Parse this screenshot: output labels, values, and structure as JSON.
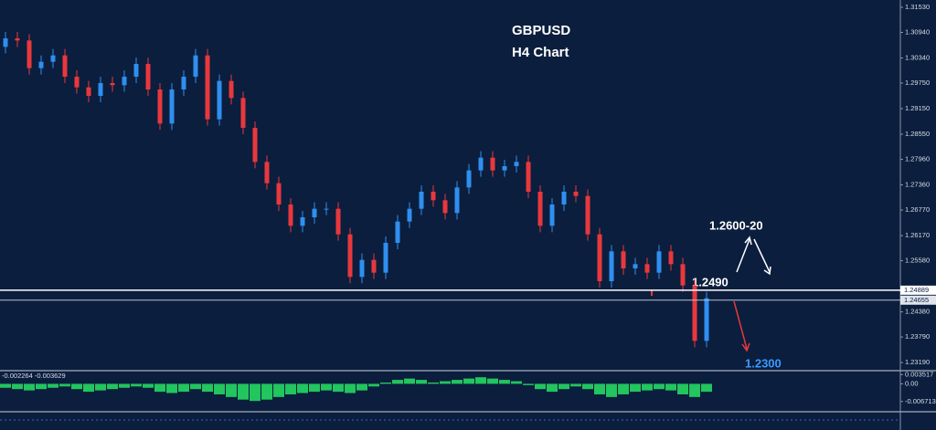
{
  "chart_data": [
    {
      "type": "candlestick",
      "title": "GBPUSD",
      "subtitle": "H4 Chart",
      "up_color": "#2f8ff0",
      "down_color": "#e8383d",
      "open": [
        1.306,
        1.308,
        1.3075,
        1.301,
        1.3025,
        1.304,
        1.299,
        1.2965,
        1.2945,
        1.2975,
        1.297,
        1.299,
        1.302,
        1.296,
        1.288,
        1.296,
        1.299,
        1.304,
        1.289,
        1.298,
        1.294,
        1.287,
        1.279,
        1.274,
        1.269,
        1.264,
        1.266,
        1.268,
        1.268,
        1.262,
        1.252,
        1.256,
        1.253,
        1.26,
        1.265,
        1.268,
        1.272,
        1.27,
        1.267,
        1.273,
        1.277,
        1.28,
        1.277,
        1.278,
        1.279,
        1.272,
        1.264,
        1.269,
        1.272,
        1.271,
        1.262,
        1.251,
        1.258,
        1.254,
        1.255,
        1.253,
        1.258,
        1.255,
        1.25,
        1.237
      ],
      "high": [
        1.3095,
        1.3095,
        1.309,
        1.304,
        1.3055,
        1.3055,
        1.3005,
        1.298,
        1.299,
        1.299,
        1.3005,
        1.3035,
        1.3035,
        1.2975,
        1.2975,
        1.3005,
        1.3055,
        1.3055,
        1.2995,
        1.2995,
        1.2955,
        1.2885,
        1.2805,
        1.2755,
        1.2705,
        1.2675,
        1.2695,
        1.2695,
        1.2695,
        1.2635,
        1.2575,
        1.2575,
        1.2615,
        1.2665,
        1.2695,
        1.2735,
        1.2735,
        1.2715,
        1.2745,
        1.2785,
        1.2815,
        1.2815,
        1.2795,
        1.2805,
        1.2805,
        1.2735,
        1.2705,
        1.2735,
        1.2735,
        1.2725,
        1.2635,
        1.2595,
        1.2595,
        1.2565,
        1.2565,
        1.2595,
        1.2595,
        1.2565,
        1.2515,
        1.2485
      ],
      "low": [
        1.3045,
        1.306,
        1.2995,
        1.2995,
        1.301,
        1.2975,
        1.295,
        1.293,
        1.293,
        1.2955,
        1.2955,
        1.2975,
        1.2945,
        1.2865,
        1.2865,
        1.2945,
        1.2975,
        1.2875,
        1.2875,
        1.2925,
        1.2855,
        1.2775,
        1.2725,
        1.2675,
        1.2625,
        1.2625,
        1.2645,
        1.2665,
        1.2605,
        1.2505,
        1.2505,
        1.2515,
        1.2515,
        1.2585,
        1.2635,
        1.2665,
        1.2685,
        1.2655,
        1.2655,
        1.2715,
        1.2755,
        1.2755,
        1.2755,
        1.2765,
        1.2705,
        1.2625,
        1.2625,
        1.2675,
        1.2695,
        1.2605,
        1.2495,
        1.2495,
        1.2525,
        1.2525,
        1.2515,
        1.2515,
        1.2535,
        1.2485,
        1.2355,
        1.2355
      ],
      "close": [
        1.308,
        1.3075,
        1.301,
        1.3025,
        1.304,
        1.299,
        1.2965,
        1.2945,
        1.2975,
        1.297,
        1.299,
        1.302,
        1.296,
        1.288,
        1.296,
        1.299,
        1.304,
        1.289,
        1.298,
        1.294,
        1.287,
        1.279,
        1.274,
        1.269,
        1.264,
        1.266,
        1.268,
        1.268,
        1.262,
        1.252,
        1.256,
        1.253,
        1.26,
        1.265,
        1.268,
        1.272,
        1.27,
        1.267,
        1.273,
        1.277,
        1.28,
        1.277,
        1.278,
        1.279,
        1.272,
        1.264,
        1.269,
        1.272,
        1.271,
        1.262,
        1.251,
        1.258,
        1.254,
        1.255,
        1.253,
        1.258,
        1.255,
        1.25,
        1.237,
        1.247
      ],
      "ylim": [
        1.23,
        1.317
      ],
      "yticks": [
        {
          "value": 1.3153,
          "label": "1.31530"
        },
        {
          "value": 1.3094,
          "label": "1.30940"
        },
        {
          "value": 1.3034,
          "label": "1.30340"
        },
        {
          "value": 1.2975,
          "label": "1.29750"
        },
        {
          "value": 1.2915,
          "label": "1.29150"
        },
        {
          "value": 1.2855,
          "label": "1.28550"
        },
        {
          "value": 1.2796,
          "label": "1.27960"
        },
        {
          "value": 1.2736,
          "label": "1.27360"
        },
        {
          "value": 1.2677,
          "label": "1.26770"
        },
        {
          "value": 1.2617,
          "label": "1.26170"
        },
        {
          "value": 1.2558,
          "label": "1.25580"
        },
        {
          "value": 1.2438,
          "label": "1.24380"
        },
        {
          "value": 1.2379,
          "label": "1.23790"
        },
        {
          "value": 1.2319,
          "label": "1.23190"
        }
      ],
      "levels": [
        {
          "value": 1.24889,
          "label": "1.24889",
          "color": "#ffffff"
        },
        {
          "value": 1.24655,
          "label": "1.24655",
          "color": "#b8c2d4"
        }
      ],
      "annotations": [
        "1.2600-20",
        "1.2490",
        "1.2300"
      ]
    },
    {
      "type": "bar",
      "title": "-0.002264 -0.003629",
      "color": "#22c55e",
      "values": [
        -0.0015,
        -0.002,
        -0.0025,
        -0.002,
        -0.0015,
        -0.001,
        -0.002,
        -0.003,
        -0.0025,
        -0.002,
        -0.0015,
        -0.001,
        -0.0015,
        -0.003,
        -0.0035,
        -0.003,
        -0.002,
        -0.003,
        -0.004,
        -0.005,
        -0.006,
        -0.0065,
        -0.006,
        -0.005,
        -0.004,
        -0.0035,
        -0.003,
        -0.0025,
        -0.003,
        -0.0035,
        -0.0025,
        -0.001,
        0.0005,
        0.0015,
        0.002,
        0.0015,
        0.0005,
        0.001,
        0.0015,
        0.002,
        0.0025,
        0.002,
        0.0015,
        0.001,
        -0.0005,
        -0.002,
        -0.003,
        -0.002,
        -0.001,
        -0.002,
        -0.004,
        -0.005,
        -0.004,
        -0.003,
        -0.0025,
        -0.002,
        -0.0025,
        -0.004,
        -0.005,
        -0.003
      ],
      "ylim": [
        -0.0106,
        0.005
      ],
      "yticks": [
        0.003517,
        {
          "value": 0,
          "label": "0.00"
        },
        -0.006713
      ]
    }
  ]
}
